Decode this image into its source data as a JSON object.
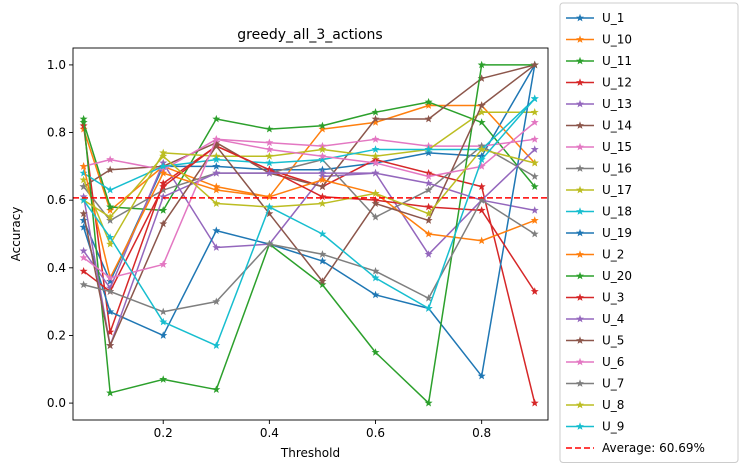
{
  "chart_data": {
    "type": "line",
    "title": "greedy_all_3_actions",
    "xlabel": "Threshold",
    "ylabel": "Accuracy",
    "xlim": [
      0.03,
      0.925
    ],
    "ylim": [
      -0.05,
      1.05
    ],
    "xticks": [
      0.2,
      0.4,
      0.6,
      0.8
    ],
    "xtick_labels": [
      "0.2",
      "0.4",
      "0.6",
      "0.8"
    ],
    "yticks": [
      0.0,
      0.2,
      0.4,
      0.6,
      0.8,
      1.0
    ],
    "ytick_labels": [
      "0.0",
      "0.2",
      "0.4",
      "0.6",
      "0.8",
      "1.0"
    ],
    "grid": false,
    "legend_placement": "outside-right",
    "x": [
      0.05,
      0.1,
      0.2,
      0.3,
      0.4,
      0.5,
      0.6,
      0.7,
      0.8,
      0.9
    ],
    "series": [
      {
        "name": "U_1",
        "color": "#1f77b4",
        "values": [
          0.54,
          0.36,
          0.7,
          0.7,
          0.69,
          0.69,
          0.71,
          0.74,
          0.73,
          1.0
        ]
      },
      {
        "name": "U_10",
        "color": "#ff7f0e",
        "values": [
          0.81,
          0.57,
          0.7,
          0.64,
          0.61,
          0.81,
          0.83,
          0.88,
          0.88,
          0.71
        ]
      },
      {
        "name": "U_11",
        "color": "#2ca02c",
        "values": [
          0.83,
          0.58,
          0.57,
          0.84,
          0.81,
          0.82,
          0.86,
          0.89,
          0.83,
          0.64
        ]
      },
      {
        "name": "U_12",
        "color": "#d62728",
        "values": [
          0.82,
          0.21,
          0.65,
          0.76,
          0.69,
          0.64,
          0.72,
          0.68,
          0.64,
          0.0
        ]
      },
      {
        "name": "U_13",
        "color": "#9467bd",
        "values": [
          0.45,
          0.34,
          0.71,
          0.46,
          0.47,
          0.67,
          0.68,
          0.44,
          0.6,
          0.57
        ]
      },
      {
        "name": "U_14",
        "color": "#8c564b",
        "values": [
          0.64,
          0.69,
          0.7,
          0.77,
          0.68,
          0.64,
          0.84,
          0.84,
          0.96,
          1.0
        ]
      },
      {
        "name": "U_15",
        "color": "#e377c2",
        "values": [
          0.7,
          0.72,
          0.69,
          0.78,
          0.77,
          0.76,
          0.78,
          0.76,
          0.76,
          0.78
        ]
      },
      {
        "name": "U_16",
        "color": "#7f7f7f",
        "values": [
          0.64,
          0.54,
          0.63,
          0.68,
          0.68,
          0.72,
          0.55,
          0.63,
          0.76,
          0.67
        ]
      },
      {
        "name": "U_17",
        "color": "#bcbd22",
        "values": [
          0.66,
          0.47,
          0.74,
          0.73,
          0.73,
          0.75,
          0.73,
          0.75,
          0.86,
          0.86
        ]
      },
      {
        "name": "U_18",
        "color": "#17becf",
        "values": [
          0.68,
          0.63,
          0.7,
          0.72,
          0.71,
          0.72,
          0.75,
          0.75,
          0.75,
          0.9
        ]
      },
      {
        "name": "U_19",
        "color": "#1f77b4",
        "values": [
          0.52,
          0.27,
          0.2,
          0.51,
          0.47,
          0.42,
          0.32,
          0.28,
          0.08,
          1.0
        ]
      },
      {
        "name": "U_2",
        "color": "#ff7f0e",
        "values": [
          0.7,
          0.37,
          0.68,
          0.63,
          0.61,
          0.66,
          0.62,
          0.5,
          0.48,
          0.54
        ]
      },
      {
        "name": "U_20",
        "color": "#2ca02c",
        "values": [
          0.84,
          0.03,
          0.07,
          0.04,
          0.47,
          0.35,
          0.15,
          0.0,
          1.0,
          1.0
        ]
      },
      {
        "name": "U_3",
        "color": "#d62728",
        "values": [
          0.39,
          0.33,
          0.64,
          0.76,
          0.69,
          0.61,
          0.6,
          0.58,
          0.57,
          0.33
        ]
      },
      {
        "name": "U_4",
        "color": "#9467bd",
        "values": [
          0.61,
          0.17,
          0.61,
          0.68,
          0.68,
          0.68,
          0.68,
          0.65,
          0.6,
          0.75
        ]
      },
      {
        "name": "U_5",
        "color": "#8c564b",
        "values": [
          0.56,
          0.17,
          0.53,
          0.76,
          0.56,
          0.36,
          0.59,
          0.54,
          0.88,
          1.0
        ]
      },
      {
        "name": "U_6",
        "color": "#e377c2",
        "values": [
          0.43,
          0.37,
          0.41,
          0.78,
          0.75,
          0.73,
          0.71,
          0.67,
          0.7,
          0.83
        ]
      },
      {
        "name": "U_7",
        "color": "#7f7f7f",
        "values": [
          0.35,
          0.33,
          0.27,
          0.3,
          0.47,
          0.44,
          0.39,
          0.31,
          0.6,
          0.5
        ]
      },
      {
        "name": "U_8",
        "color": "#bcbd22",
        "values": [
          0.6,
          0.55,
          0.73,
          0.59,
          0.58,
          0.59,
          0.62,
          0.56,
          0.75,
          0.71
        ]
      },
      {
        "name": "U_9",
        "color": "#17becf",
        "values": [
          0.6,
          0.49,
          0.24,
          0.17,
          0.58,
          0.5,
          0.37,
          0.28,
          0.72,
          0.9
        ]
      }
    ],
    "average_line": {
      "label": "Average: 60.69%",
      "value": 0.6069,
      "color": "#ff0000"
    }
  }
}
